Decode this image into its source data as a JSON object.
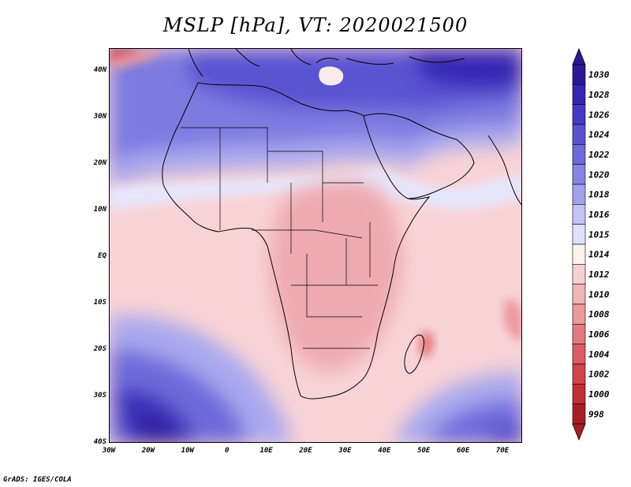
{
  "title": "MSLP [hPa], VT: 2020021500",
  "credit": "GrADS: IGES/COLA",
  "map": {
    "lon_range": [
      -30,
      75
    ],
    "lat_range": [
      -40,
      45
    ],
    "lat_labels": [
      "40N",
      "30N",
      "20N",
      "10N",
      "EQ",
      "10S",
      "20S",
      "30S",
      "40S"
    ],
    "lon_labels": [
      "30W",
      "20W",
      "10W",
      "0",
      "10E",
      "20E",
      "30E",
      "40E",
      "50E",
      "60E",
      "70E"
    ]
  },
  "colorbar": {
    "levels": [
      "1030",
      "1028",
      "1026",
      "1024",
      "1022",
      "1020",
      "1018",
      "1016",
      "1015",
      "1014",
      "1012",
      "1010",
      "1008",
      "1006",
      "1004",
      "1002",
      "1000",
      "998"
    ],
    "colors": [
      "#2a1896",
      "#3527b4",
      "#4539c8",
      "#5b52d2",
      "#6e6adb",
      "#8785e3",
      "#a2a1ec",
      "#c3c3f5",
      "#e0e0fb",
      "#fdf1f1",
      "#f7cfd1",
      "#f1b4b7",
      "#eb999d",
      "#e47a80",
      "#dc5c63",
      "#d2434a",
      "#c22e35",
      "#a81f23"
    ]
  }
}
